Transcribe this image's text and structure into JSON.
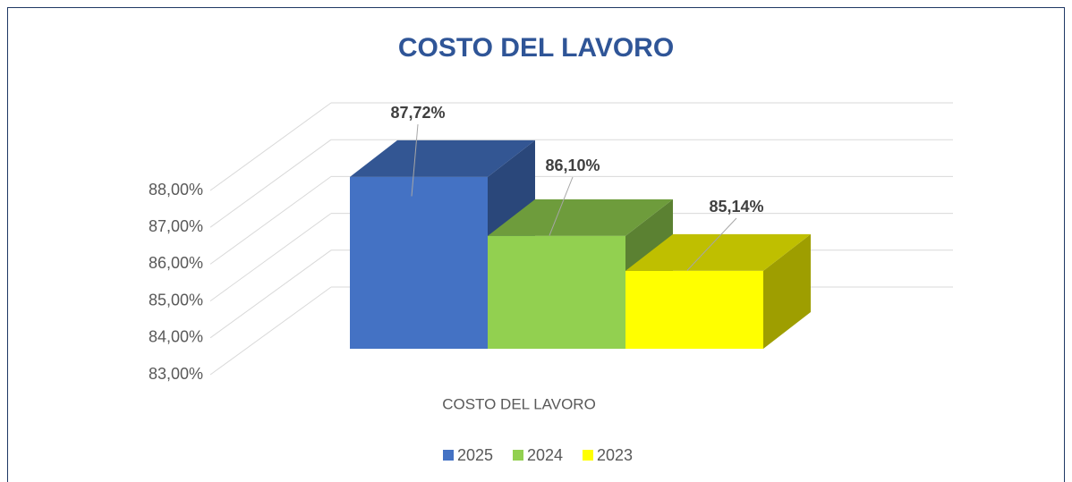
{
  "chart_data": {
    "type": "bar3d",
    "title": "COSTO DEL LAVORO",
    "categories": [
      "COSTO DEL LAVORO"
    ],
    "series": [
      {
        "name": "2025",
        "color": "#4472c4",
        "values": [
          87.72
        ],
        "value_labels": [
          "87,72%"
        ]
      },
      {
        "name": "2024",
        "color": "#92d050",
        "values": [
          86.1
        ],
        "value_labels": [
          "86,10%"
        ]
      },
      {
        "name": "2023",
        "color": "#ffff00",
        "values": [
          85.14
        ],
        "value_labels": [
          "85,14%"
        ]
      }
    ],
    "ylim": [
      83,
      88
    ],
    "yticks": [
      {
        "value": 83,
        "label": "83,00%"
      },
      {
        "value": 84,
        "label": "84,00%"
      },
      {
        "value": 85,
        "label": "85,00%"
      },
      {
        "value": 86,
        "label": "86,00%"
      },
      {
        "value": 87,
        "label": "87,00%"
      },
      {
        "value": 88,
        "label": "88,00%"
      }
    ],
    "grid": true,
    "legend": "bottom"
  }
}
